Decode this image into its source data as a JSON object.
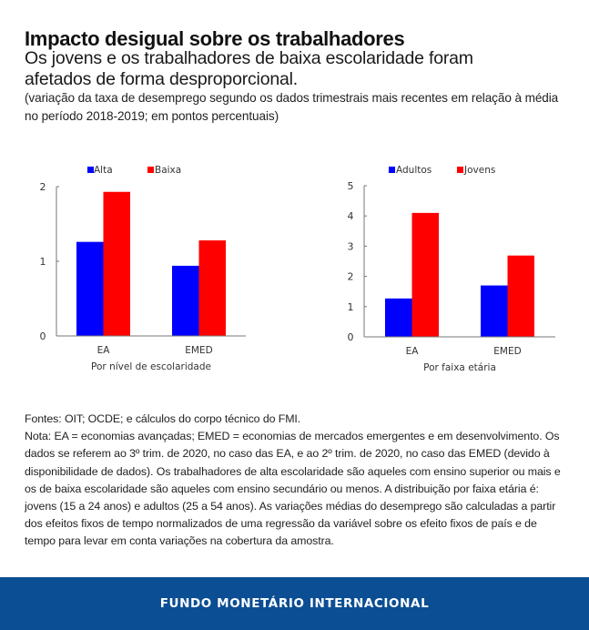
{
  "header": {
    "title": "Impacto desigual sobre os trabalhadores",
    "subtitle": "Os jovens e os trabalhadores de baixa escolaridade foram afetados de forma desproporcional.",
    "units": "(variação da taxa de desemprego segundo os dados trimestrais mais recentes em relação à média no período 2018-2019; em pontos percentuais)"
  },
  "colors": {
    "series_1": "#0000ff",
    "series_2": "#ff0000",
    "footer_bg": "#0b4e94"
  },
  "chart_data": [
    {
      "type": "bar",
      "title": "",
      "xlabel": "Por nível de escolaridade",
      "ylabel": "",
      "categories": [
        "EA",
        "EMED"
      ],
      "series": [
        {
          "name": "Alta",
          "color": "#0000ff",
          "values": [
            1.26,
            0.94
          ]
        },
        {
          "name": "Baixa",
          "color": "#ff0000",
          "values": [
            1.93,
            1.28
          ]
        }
      ],
      "ylim": [
        0,
        2
      ],
      "yticks": [
        0,
        1,
        2
      ],
      "grid": false,
      "legend": "top"
    },
    {
      "type": "bar",
      "title": "",
      "xlabel": "Por faixa etária",
      "ylabel": "",
      "categories": [
        "EA",
        "EMED"
      ],
      "series": [
        {
          "name": "Adultos",
          "color": "#0000ff",
          "values": [
            1.27,
            1.7
          ]
        },
        {
          "name": "Jovens",
          "color": "#ff0000",
          "values": [
            4.1,
            2.69
          ]
        }
      ],
      "ylim": [
        0,
        5
      ],
      "yticks": [
        0,
        1,
        2,
        3,
        4,
        5
      ],
      "grid": false,
      "legend": "top"
    }
  ],
  "notes": {
    "sources": "Fontes: OIT; OCDE; e cálculos do corpo técnico do FMI.",
    "note": "Nota: EA = economias avançadas; EMED = economias de mercados emergentes e em desenvolvimento. Os dados se referem ao 3º trim. de 2020, no caso das EA, e ao 2º trim. de 2020, no caso das EMED (devido à disponibilidade de dados). Os trabalhadores de alta escolaridade são aqueles com ensino superior ou mais e os de baixa escolaridade são aqueles com ensino secundário ou menos. A distribuição por faixa etária é: jovens (15 a 24 anos) e adultos (25 a 54 anos). As variações médias do desemprego são calculadas a partir dos efeitos fixos de tempo normalizados de uma regressão da variável sobre os efeito fixos de país e de tempo para levar em conta variações na cobertura da amostra."
  },
  "footer": {
    "label": "FUNDO MONETÁRIO INTERNACIONAL"
  }
}
